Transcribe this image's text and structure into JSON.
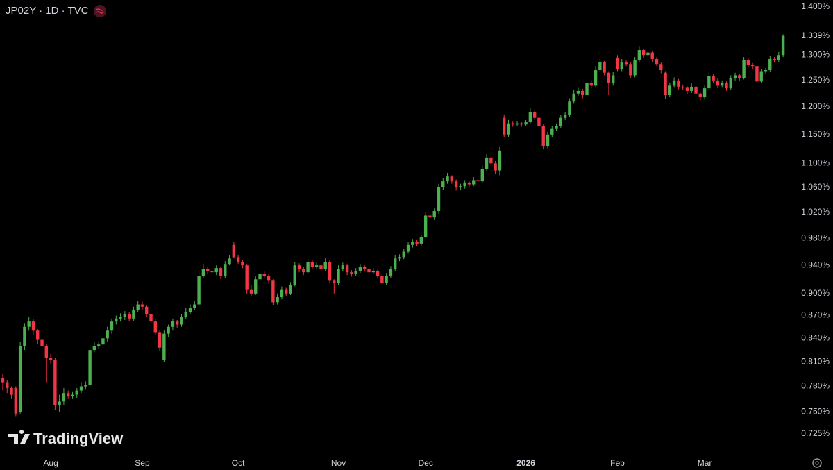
{
  "chart_data": {
    "type": "candlestick",
    "title": "JP02Y · 1D · TVC",
    "watermark": "TradingView",
    "up_color": "#4caf50",
    "down_color": "#f23645",
    "log": true,
    "ylim": [
      0.702,
      1.415
    ],
    "yticks": [
      {
        "value": 1.4,
        "label": "1.400%"
      },
      {
        "value": 1.3,
        "label": "1.300%"
      },
      {
        "value": 1.25,
        "label": "1.250%"
      },
      {
        "value": 1.2,
        "label": "1.200%"
      },
      {
        "value": 1.15,
        "label": "1.150%"
      },
      {
        "value": 1.1,
        "label": "1.100%"
      },
      {
        "value": 1.06,
        "label": "1.060%"
      },
      {
        "value": 1.02,
        "label": "1.020%"
      },
      {
        "value": 0.98,
        "label": "0.980%"
      },
      {
        "value": 0.94,
        "label": "0.940%"
      },
      {
        "value": 0.9,
        "label": "0.900%"
      },
      {
        "value": 0.87,
        "label": "0.870%"
      },
      {
        "value": 0.84,
        "label": "0.840%"
      },
      {
        "value": 0.81,
        "label": "0.810%"
      },
      {
        "value": 0.78,
        "label": "0.780%"
      },
      {
        "value": 0.75,
        "label": "0.750%"
      },
      {
        "value": 0.725,
        "label": "0.725%"
      }
    ],
    "last_price": {
      "value": 1.339,
      "label": "1.339%"
    },
    "categories": [
      null,
      null,
      null,
      null,
      null,
      null,
      null,
      null,
      null,
      null,
      null,
      "Aug",
      null,
      null,
      null,
      null,
      null,
      null,
      null,
      null,
      null,
      null,
      null,
      null,
      null,
      null,
      null,
      null,
      null,
      null,
      null,
      null,
      "Sep",
      null,
      null,
      null,
      null,
      null,
      null,
      null,
      null,
      null,
      null,
      null,
      null,
      null,
      null,
      null,
      null,
      null,
      null,
      null,
      null,
      null,
      "Oct",
      null,
      null,
      null,
      null,
      null,
      null,
      null,
      null,
      null,
      null,
      null,
      null,
      null,
      null,
      null,
      null,
      null,
      null,
      null,
      null,
      null,
      null,
      "Nov",
      null,
      null,
      null,
      null,
      null,
      null,
      null,
      null,
      null,
      null,
      null,
      null,
      null,
      null,
      null,
      null,
      null,
      null,
      null,
      "Dec",
      null,
      null,
      null,
      null,
      null,
      null,
      null,
      null,
      null,
      null,
      null,
      null,
      null,
      null,
      null,
      null,
      null,
      null,
      null,
      null,
      null,
      null,
      "2026",
      null,
      null,
      null,
      null,
      null,
      null,
      null,
      null,
      null,
      null,
      null,
      null,
      null,
      null,
      null,
      null,
      null,
      null,
      null,
      null,
      "Feb",
      null,
      null,
      null,
      null,
      null,
      null,
      null,
      null,
      null,
      null,
      null,
      null,
      null,
      null,
      null,
      null,
      null,
      null,
      null,
      "Mar",
      null,
      null,
      null,
      null,
      null,
      null,
      null,
      null,
      null,
      null,
      null,
      null,
      null,
      null,
      null,
      null,
      null,
      null
    ],
    "candles": [
      [
        0.79,
        0.795,
        0.775,
        0.785
      ],
      [
        0.785,
        0.788,
        0.772,
        0.778
      ],
      [
        0.778,
        0.78,
        0.765,
        0.77
      ],
      [
        0.778,
        0.78,
        0.745,
        0.748
      ],
      [
        0.75,
        0.835,
        0.748,
        0.83
      ],
      [
        0.83,
        0.86,
        0.825,
        0.855
      ],
      [
        0.855,
        0.868,
        0.85,
        0.862
      ],
      [
        0.862,
        0.865,
        0.845,
        0.85
      ],
      [
        0.85,
        0.852,
        0.832,
        0.838
      ],
      [
        0.838,
        0.842,
        0.825,
        0.83
      ],
      [
        0.83,
        0.833,
        0.785,
        0.815
      ],
      [
        0.815,
        0.82,
        0.808,
        0.812
      ],
      [
        0.812,
        0.815,
        0.752,
        0.758
      ],
      [
        0.758,
        0.77,
        0.75,
        0.762
      ],
      [
        0.762,
        0.778,
        0.758,
        0.772
      ],
      [
        0.772,
        0.775,
        0.765,
        0.768
      ],
      [
        0.768,
        0.774,
        0.765,
        0.77
      ],
      [
        0.77,
        0.778,
        0.766,
        0.775
      ],
      [
        0.775,
        0.785,
        0.772,
        0.78
      ],
      [
        0.78,
        0.786,
        0.776,
        0.782
      ],
      [
        0.782,
        0.83,
        0.78,
        0.825
      ],
      [
        0.825,
        0.835,
        0.822,
        0.83
      ],
      [
        0.83,
        0.836,
        0.826,
        0.832
      ],
      [
        0.832,
        0.845,
        0.828,
        0.84
      ],
      [
        0.84,
        0.855,
        0.836,
        0.85
      ],
      [
        0.85,
        0.866,
        0.846,
        0.862
      ],
      [
        0.862,
        0.87,
        0.858,
        0.866
      ],
      [
        0.866,
        0.873,
        0.862,
        0.868
      ],
      [
        0.868,
        0.876,
        0.864,
        0.872
      ],
      [
        0.872,
        0.875,
        0.862,
        0.866
      ],
      [
        0.866,
        0.882,
        0.863,
        0.878
      ],
      [
        0.878,
        0.89,
        0.875,
        0.885
      ],
      [
        0.885,
        0.889,
        0.878,
        0.882
      ],
      [
        0.882,
        0.884,
        0.868,
        0.872
      ],
      [
        0.872,
        0.875,
        0.858,
        0.862
      ],
      [
        0.862,
        0.865,
        0.844,
        0.848
      ],
      [
        0.848,
        0.85,
        0.824,
        0.828
      ],
      [
        0.812,
        0.85,
        0.81,
        0.846
      ],
      [
        0.846,
        0.858,
        0.842,
        0.855
      ],
      [
        0.855,
        0.866,
        0.85,
        0.862
      ],
      [
        0.862,
        0.864,
        0.854,
        0.858
      ],
      [
        0.858,
        0.872,
        0.855,
        0.868
      ],
      [
        0.868,
        0.88,
        0.865,
        0.875
      ],
      [
        0.875,
        0.885,
        0.872,
        0.88
      ],
      [
        0.88,
        0.89,
        0.877,
        0.885
      ],
      [
        0.885,
        0.93,
        0.882,
        0.925
      ],
      [
        0.925,
        0.942,
        0.922,
        0.935
      ],
      [
        0.935,
        0.938,
        0.928,
        0.932
      ],
      [
        0.932,
        0.934,
        0.925,
        0.93
      ],
      [
        0.93,
        0.94,
        0.926,
        0.936
      ],
      [
        0.936,
        0.938,
        0.92,
        0.925
      ],
      [
        0.925,
        0.946,
        0.922,
        0.942
      ],
      [
        0.942,
        0.955,
        0.94,
        0.95
      ],
      [
        0.97,
        0.975,
        0.95,
        0.952
      ],
      [
        0.952,
        0.955,
        0.942,
        0.945
      ],
      [
        0.945,
        0.948,
        0.936,
        0.94
      ],
      [
        0.94,
        0.942,
        0.9,
        0.905
      ],
      [
        0.905,
        0.912,
        0.896,
        0.9
      ],
      [
        0.9,
        0.924,
        0.898,
        0.92
      ],
      [
        0.92,
        0.932,
        0.916,
        0.928
      ],
      [
        0.928,
        0.931,
        0.921,
        0.925
      ],
      [
        0.925,
        0.928,
        0.914,
        0.918
      ],
      [
        0.918,
        0.92,
        0.884,
        0.888
      ],
      [
        0.888,
        0.9,
        0.885,
        0.895
      ],
      [
        0.895,
        0.91,
        0.892,
        0.905
      ],
      [
        0.905,
        0.908,
        0.896,
        0.9
      ],
      [
        0.9,
        0.916,
        0.898,
        0.912
      ],
      [
        0.912,
        0.945,
        0.91,
        0.94
      ],
      [
        0.94,
        0.943,
        0.93,
        0.935
      ],
      [
        0.935,
        0.938,
        0.926,
        0.93
      ],
      [
        0.93,
        0.95,
        0.928,
        0.945
      ],
      [
        0.945,
        0.948,
        0.934,
        0.938
      ],
      [
        0.938,
        0.944,
        0.935,
        0.94
      ],
      [
        0.94,
        0.942,
        0.931,
        0.935
      ],
      [
        0.935,
        0.95,
        0.932,
        0.945
      ],
      [
        0.945,
        0.948,
        0.914,
        0.918
      ],
      [
        0.918,
        0.92,
        0.9,
        0.915
      ],
      [
        0.915,
        0.94,
        0.912,
        0.935
      ],
      [
        0.935,
        0.944,
        0.932,
        0.94
      ],
      [
        0.94,
        0.942,
        0.926,
        0.93
      ],
      [
        0.93,
        0.933,
        0.924,
        0.928
      ],
      [
        0.928,
        0.936,
        0.925,
        0.932
      ],
      [
        0.932,
        0.942,
        0.929,
        0.938
      ],
      [
        0.938,
        0.94,
        0.931,
        0.935
      ],
      [
        0.935,
        0.937,
        0.926,
        0.93
      ],
      [
        0.93,
        0.936,
        0.927,
        0.932
      ],
      [
        0.932,
        0.934,
        0.921,
        0.925
      ],
      [
        0.925,
        0.928,
        0.911,
        0.915
      ],
      [
        0.915,
        0.929,
        0.912,
        0.925
      ],
      [
        0.925,
        0.939,
        0.922,
        0.935
      ],
      [
        0.935,
        0.955,
        0.932,
        0.95
      ],
      [
        0.95,
        0.956,
        0.946,
        0.952
      ],
      [
        0.952,
        0.964,
        0.949,
        0.96
      ],
      [
        0.96,
        0.974,
        0.957,
        0.97
      ],
      [
        0.97,
        0.979,
        0.966,
        0.975
      ],
      [
        0.975,
        0.978,
        0.968,
        0.972
      ],
      [
        0.972,
        0.986,
        0.969,
        0.982
      ],
      [
        0.982,
        1.02,
        0.98,
        1.015
      ],
      [
        1.015,
        1.018,
        1.006,
        1.012
      ],
      [
        1.012,
        1.026,
        1.008,
        1.022
      ],
      [
        1.022,
        1.066,
        1.018,
        1.06
      ],
      [
        1.06,
        1.076,
        1.056,
        1.07
      ],
      [
        1.07,
        1.084,
        1.066,
        1.078
      ],
      [
        1.078,
        1.08,
        1.066,
        1.07
      ],
      [
        1.07,
        1.073,
        1.055,
        1.06
      ],
      [
        1.06,
        1.066,
        1.056,
        1.062
      ],
      [
        1.062,
        1.072,
        1.058,
        1.068
      ],
      [
        1.068,
        1.071,
        1.061,
        1.065
      ],
      [
        1.065,
        1.077,
        1.062,
        1.072
      ],
      [
        1.072,
        1.075,
        1.066,
        1.07
      ],
      [
        1.07,
        1.096,
        1.067,
        1.09
      ],
      [
        1.09,
        1.116,
        1.086,
        1.11
      ],
      [
        1.11,
        1.113,
        1.095,
        1.1
      ],
      [
        1.1,
        1.104,
        1.082,
        1.088
      ],
      [
        1.088,
        1.128,
        1.08,
        1.122
      ],
      [
        1.18,
        1.186,
        1.145,
        1.15
      ],
      [
        1.15,
        1.176,
        1.145,
        1.17
      ],
      [
        1.17,
        1.173,
        1.164,
        1.168
      ],
      [
        1.168,
        1.174,
        1.165,
        1.17
      ],
      [
        1.17,
        1.172,
        1.164,
        1.168
      ],
      [
        1.168,
        1.176,
        1.165,
        1.172
      ],
      [
        1.172,
        1.198,
        1.17,
        1.19
      ],
      [
        1.19,
        1.193,
        1.176,
        1.18
      ],
      [
        1.18,
        1.183,
        1.16,
        1.165
      ],
      [
        1.165,
        1.168,
        1.124,
        1.13
      ],
      [
        1.13,
        1.155,
        1.126,
        1.15
      ],
      [
        1.15,
        1.165,
        1.146,
        1.16
      ],
      [
        1.16,
        1.17,
        1.156,
        1.165
      ],
      [
        1.165,
        1.185,
        1.162,
        1.18
      ],
      [
        1.18,
        1.19,
        1.176,
        1.185
      ],
      [
        1.185,
        1.216,
        1.182,
        1.21
      ],
      [
        1.21,
        1.232,
        1.206,
        1.225
      ],
      [
        1.225,
        1.236,
        1.22,
        1.23
      ],
      [
        1.23,
        1.234,
        1.216,
        1.222
      ],
      [
        1.222,
        1.252,
        1.218,
        1.245
      ],
      [
        1.245,
        1.25,
        1.235,
        1.24
      ],
      [
        1.24,
        1.278,
        1.236,
        1.27
      ],
      [
        1.27,
        1.292,
        1.266,
        1.285
      ],
      [
        1.285,
        1.288,
        1.26,
        1.265
      ],
      [
        1.265,
        1.268,
        1.222,
        1.245
      ],
      [
        1.245,
        1.266,
        1.24,
        1.26
      ],
      [
        1.295,
        1.3,
        1.268,
        1.272
      ],
      [
        1.272,
        1.292,
        1.268,
        1.285
      ],
      [
        1.285,
        1.29,
        1.278,
        1.282
      ],
      [
        1.282,
        1.286,
        1.255,
        1.26
      ],
      [
        1.26,
        1.296,
        1.256,
        1.29
      ],
      [
        1.29,
        1.318,
        1.286,
        1.31
      ],
      [
        1.31,
        1.313,
        1.295,
        1.3
      ],
      [
        1.3,
        1.31,
        1.296,
        1.305
      ],
      [
        1.305,
        1.308,
        1.286,
        1.292
      ],
      [
        1.292,
        1.296,
        1.278,
        1.282
      ],
      [
        1.282,
        1.285,
        1.264,
        1.27
      ],
      [
        1.265,
        1.268,
        1.215,
        1.222
      ],
      [
        1.222,
        1.246,
        1.218,
        1.24
      ],
      [
        1.24,
        1.256,
        1.236,
        1.25
      ],
      [
        1.25,
        1.253,
        1.233,
        1.238
      ],
      [
        1.238,
        1.242,
        1.232,
        1.236
      ],
      [
        1.236,
        1.239,
        1.224,
        1.23
      ],
      [
        1.23,
        1.244,
        1.226,
        1.238
      ],
      [
        1.238,
        1.241,
        1.22,
        1.225
      ],
      [
        1.225,
        1.228,
        1.212,
        1.218
      ],
      [
        1.218,
        1.24,
        1.214,
        1.235
      ],
      [
        1.235,
        1.266,
        1.23,
        1.258
      ],
      [
        1.258,
        1.262,
        1.245,
        1.25
      ],
      [
        1.25,
        1.254,
        1.235,
        1.24
      ],
      [
        1.24,
        1.25,
        1.236,
        1.245
      ],
      [
        1.245,
        1.248,
        1.23,
        1.235
      ],
      [
        1.235,
        1.26,
        1.232,
        1.255
      ],
      [
        1.255,
        1.265,
        1.25,
        1.26
      ],
      [
        1.26,
        1.263,
        1.25,
        1.255
      ],
      [
        1.255,
        1.296,
        1.252,
        1.29
      ],
      [
        1.29,
        1.293,
        1.275,
        1.28
      ],
      [
        1.28,
        1.284,
        1.272,
        1.278
      ],
      [
        1.278,
        1.281,
        1.243,
        1.248
      ],
      [
        1.248,
        1.272,
        1.245,
        1.268
      ],
      [
        1.268,
        1.274,
        1.264,
        1.27
      ],
      [
        1.27,
        1.298,
        1.266,
        1.292
      ],
      [
        1.292,
        1.296,
        1.285,
        1.29
      ],
      [
        1.29,
        1.306,
        1.286,
        1.3
      ],
      [
        1.3,
        1.342,
        1.296,
        1.339
      ]
    ]
  }
}
